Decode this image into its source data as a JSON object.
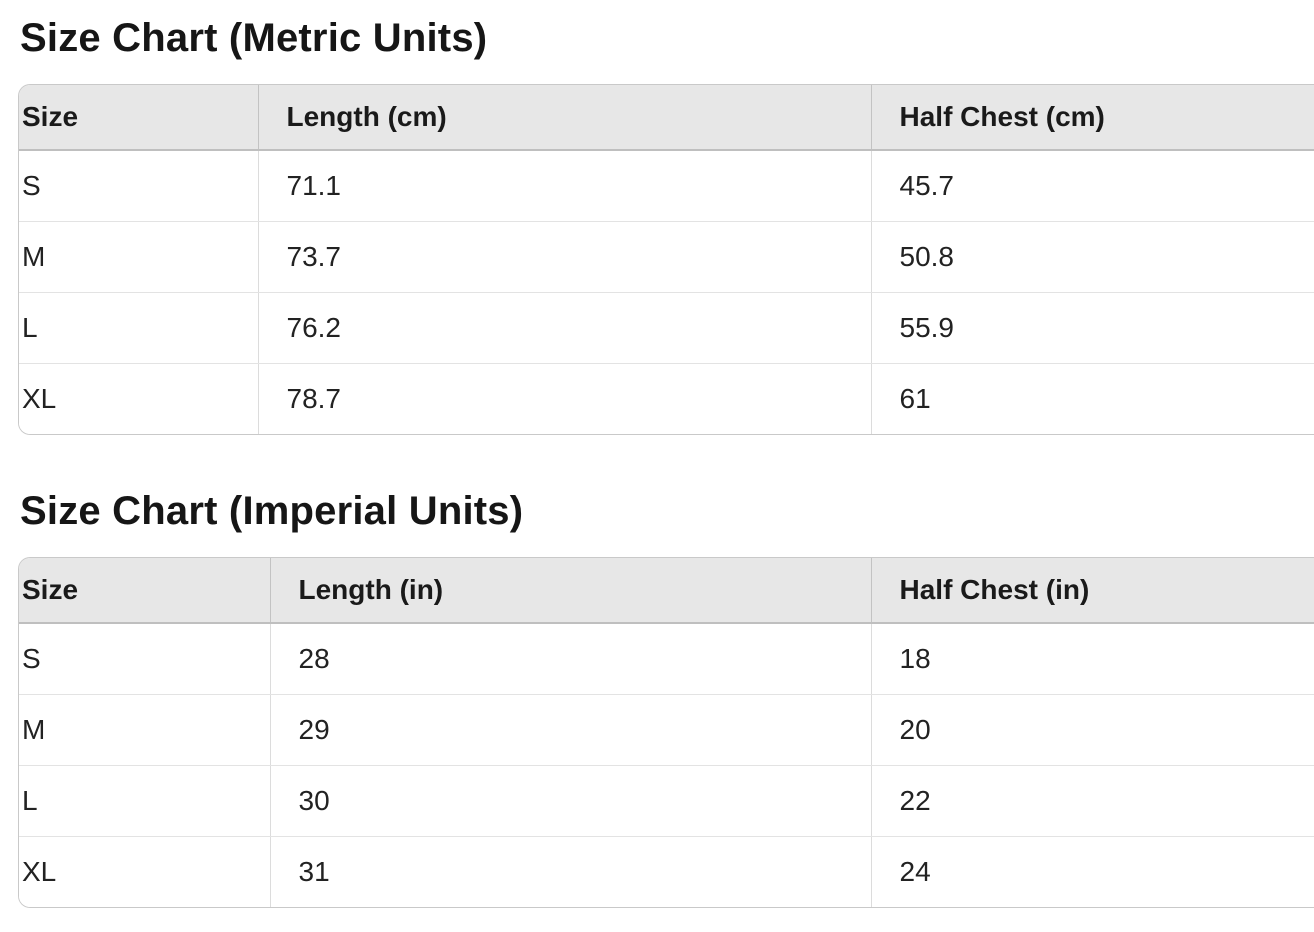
{
  "colors": {
    "header_background": "#e7e7e7",
    "table_border": "#c9c9c9",
    "row_separator": "#e3e3e3",
    "text": "#1c1c1c"
  },
  "sections": [
    {
      "heading": "Size Chart (Metric Units)",
      "table": {
        "columns": [
          "Size",
          "Length (cm)",
          "Half Chest (cm)"
        ],
        "rows": [
          [
            "S",
            "71.1",
            "45.7"
          ],
          [
            "M",
            "73.7",
            "50.8"
          ],
          [
            "L",
            "76.2",
            "55.9"
          ],
          [
            "XL",
            "78.7",
            "61"
          ]
        ]
      }
    },
    {
      "heading": "Size Chart (Imperial Units)",
      "table": {
        "columns": [
          "Size",
          "Length (in)",
          "Half Chest (in)"
        ],
        "rows": [
          [
            "S",
            "28",
            "18"
          ],
          [
            "M",
            "29",
            "20"
          ],
          [
            "L",
            "30",
            "22"
          ],
          [
            "XL",
            "31",
            "24"
          ]
        ]
      }
    }
  ]
}
